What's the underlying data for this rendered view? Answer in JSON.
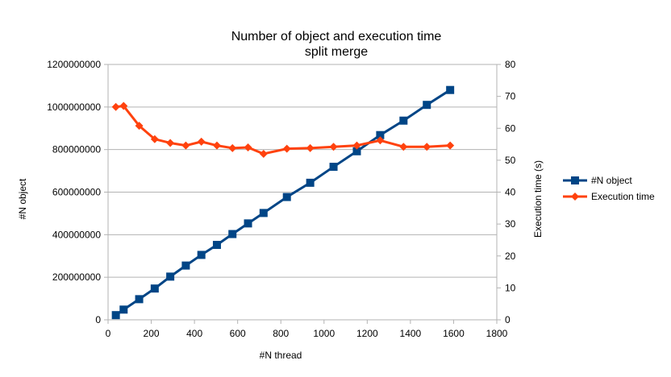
{
  "chart_data": {
    "type": "line",
    "title": "Number of object and execution time",
    "subtitle": "split merge",
    "xlabel": "#N thread",
    "ylabel": "#N object",
    "y2label": "Execution time (s)",
    "xlim": [
      0,
      1800
    ],
    "ylim": [
      0,
      1200000000
    ],
    "y2lim": [
      0,
      80
    ],
    "xticks": [
      0,
      200,
      400,
      600,
      800,
      1000,
      1200,
      1400,
      1600,
      1800
    ],
    "yticks": [
      0,
      200000000,
      400000000,
      600000000,
      800000000,
      1000000000,
      1200000000
    ],
    "y2ticks": [
      0,
      10,
      20,
      30,
      40,
      50,
      60,
      70,
      80
    ],
    "grid": "horizontal",
    "legend_position": "right",
    "series": [
      {
        "name": "#N object",
        "axis": "left",
        "color": "#004586",
        "marker": "square",
        "x": [
          36,
          72,
          144,
          216,
          288,
          360,
          432,
          504,
          576,
          648,
          720,
          828,
          936,
          1044,
          1152,
          1260,
          1368,
          1476,
          1584
        ],
        "values": [
          22000000,
          48000000,
          97000000,
          147000000,
          203000000,
          255000000,
          305000000,
          352000000,
          403000000,
          453000000,
          502000000,
          577000000,
          644000000,
          719000000,
          792000000,
          868000000,
          936000000,
          1010000000,
          1080000000
        ]
      },
      {
        "name": "Execution time",
        "axis": "right",
        "color": "#ff420e",
        "marker": "diamond",
        "x": [
          36,
          72,
          144,
          216,
          288,
          360,
          432,
          504,
          576,
          648,
          720,
          828,
          936,
          1044,
          1152,
          1260,
          1368,
          1476,
          1584
        ],
        "values": [
          66.7,
          67.0,
          60.8,
          56.6,
          55.4,
          54.6,
          55.8,
          54.6,
          53.8,
          54.0,
          52.0,
          53.6,
          53.8,
          54.2,
          54.6,
          56.2,
          54.2,
          54.2,
          54.6
        ]
      }
    ]
  }
}
